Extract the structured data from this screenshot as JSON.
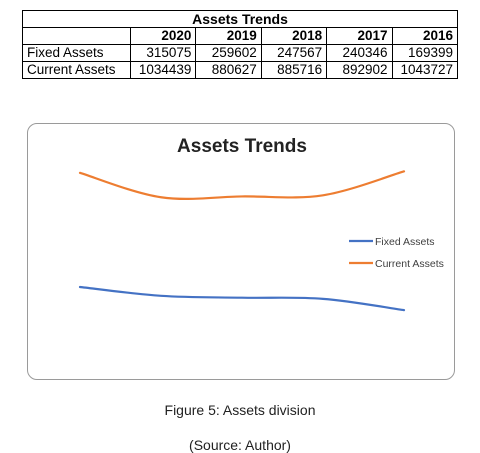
{
  "table": {
    "title": "Assets Trends",
    "years": [
      "2020",
      "2019",
      "2018",
      "2017",
      "2016"
    ],
    "rows": [
      {
        "label": "Fixed Assets",
        "values": [
          "315075",
          "259602",
          "247567",
          "240346",
          "169399"
        ]
      },
      {
        "label": "Current Assets",
        "values": [
          "1034439",
          "880627",
          "885716",
          "892902",
          "1043727"
        ]
      }
    ]
  },
  "chart_data": {
    "type": "line",
    "title": "Assets Trends",
    "x": [
      "2020",
      "2019",
      "2018",
      "2017",
      "2016"
    ],
    "series": [
      {
        "name": "Fixed Assets",
        "color": "#4472C4",
        "values": [
          315075,
          259602,
          247567,
          240346,
          169399
        ]
      },
      {
        "name": "Current Assets",
        "color": "#ED7D31",
        "values": [
          1034439,
          880627,
          885716,
          892902,
          1043727
        ]
      }
    ],
    "smooth": true,
    "axes_visible": false,
    "grid": false,
    "legend": "right"
  },
  "caption": {
    "figure": "Figure 5: Assets division",
    "source": "(Source: Author)"
  }
}
